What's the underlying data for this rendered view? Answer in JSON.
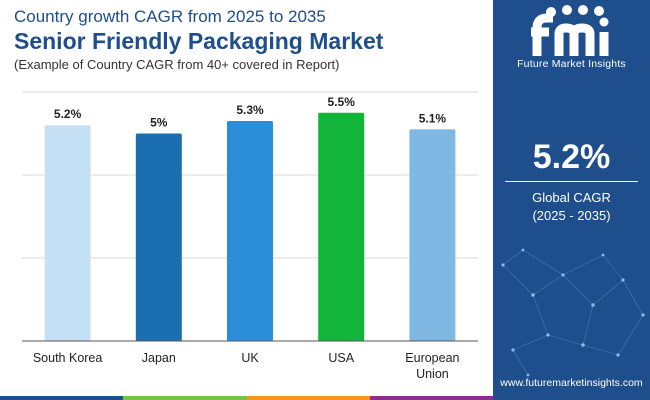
{
  "header": {
    "top_line": "Country growth CAGR from 2025 to 2035",
    "title": "Senior Friendly Packaging Market",
    "subtitle": "(Example of Country CAGR from 40+ covered in Report)"
  },
  "chart_data": {
    "type": "bar",
    "title": "Senior Friendly Packaging Market",
    "categories": [
      "South Korea",
      "Japan",
      "UK",
      "USA",
      "European Union"
    ],
    "category_lines": [
      [
        "South Korea"
      ],
      [
        "Japan"
      ],
      [
        "UK"
      ],
      [
        "USA"
      ],
      [
        "European",
        "Union"
      ]
    ],
    "values": [
      5.2,
      5.0,
      5.3,
      5.5,
      5.1
    ],
    "value_labels": [
      "5.2%",
      "5%",
      "5.3%",
      "5.5%",
      "5.1%"
    ],
    "colors": [
      "#c5e0f5",
      "#1b6fb0",
      "#2a8fd8",
      "#12b53a",
      "#7eb8e3"
    ],
    "unit": "%",
    "xlabel": "",
    "ylabel": "",
    "ylim": [
      0,
      6
    ],
    "grid": true
  },
  "sidebar": {
    "logo_text": "Future Market Insights",
    "kpi_value": "5.2%",
    "kpi_label_line1": "Global CAGR",
    "kpi_label_line2": "(2025 - 2035)",
    "website": "www.futuremarketinsights.com"
  },
  "colors": {
    "brand": "#1e4e8c",
    "bottom_strip": [
      "#1e4e8c",
      "#7ac143",
      "#f7941d",
      "#8b2f8f"
    ]
  }
}
